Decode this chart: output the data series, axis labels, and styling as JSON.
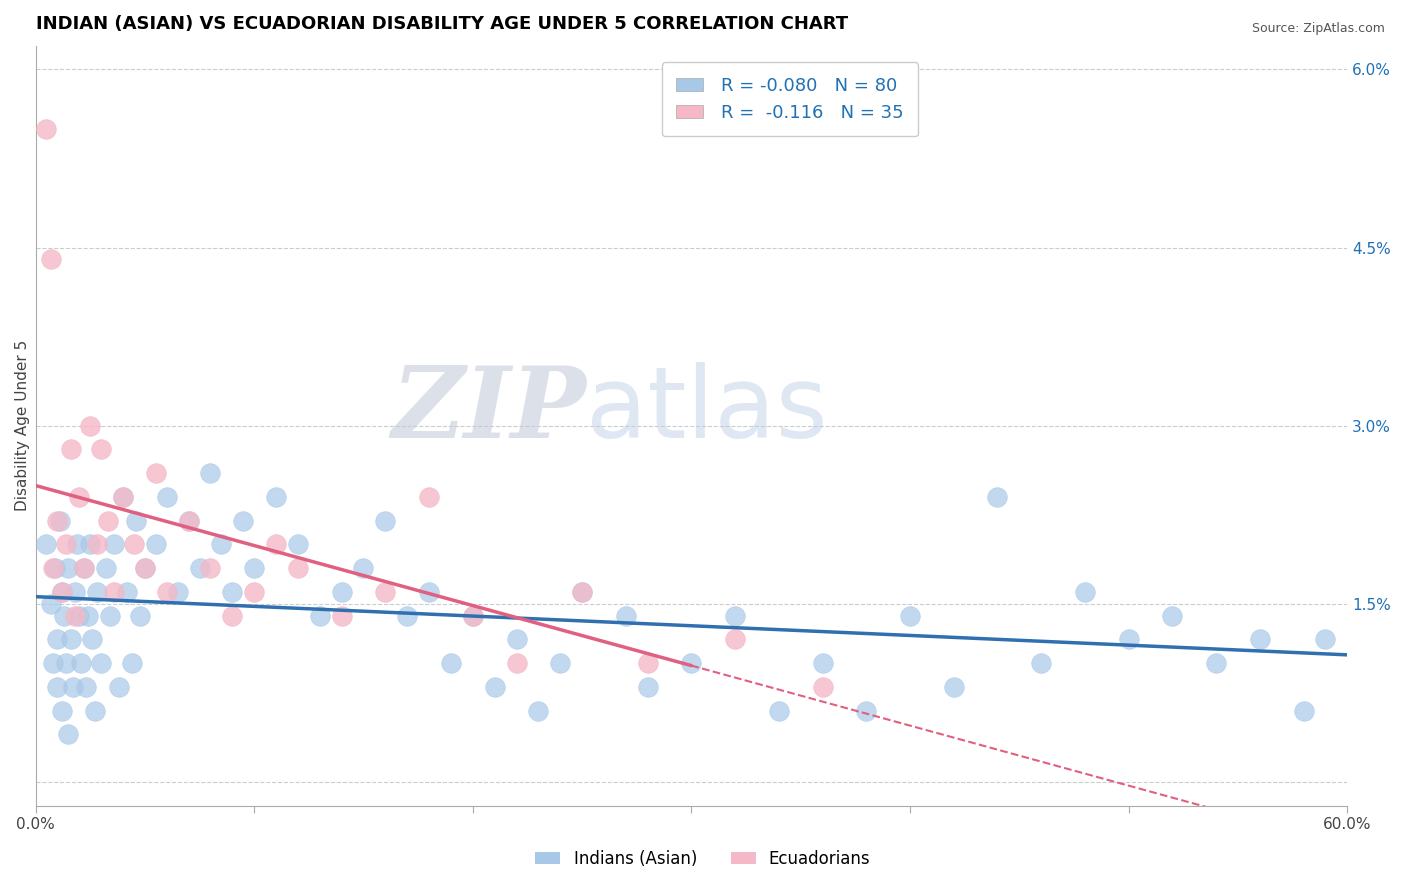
{
  "title": "INDIAN (ASIAN) VS ECUADORIAN DISABILITY AGE UNDER 5 CORRELATION CHART",
  "source": "Source: ZipAtlas.com",
  "ylabel": "Disability Age Under 5",
  "xlim": [
    0.0,
    0.6
  ],
  "ylim": [
    -0.002,
    0.062
  ],
  "xticks": [
    0.0,
    0.1,
    0.2,
    0.3,
    0.4,
    0.5,
    0.6
  ],
  "xticklabels": [
    "0.0%",
    "",
    "",
    "",
    "",
    "",
    "60.0%"
  ],
  "yticks_right": [
    0.0,
    0.015,
    0.03,
    0.045,
    0.06
  ],
  "yticklabels_right": [
    "",
    "1.5%",
    "3.0%",
    "4.5%",
    "6.0%"
  ],
  "blue_color": "#a8c8e8",
  "pink_color": "#f4b8c8",
  "blue_line_color": "#3070b0",
  "pink_line_color": "#e06080",
  "blue_scatter_x": [
    0.005,
    0.007,
    0.008,
    0.009,
    0.01,
    0.01,
    0.011,
    0.012,
    0.012,
    0.013,
    0.014,
    0.015,
    0.015,
    0.016,
    0.017,
    0.018,
    0.019,
    0.02,
    0.021,
    0.022,
    0.023,
    0.024,
    0.025,
    0.026,
    0.027,
    0.028,
    0.03,
    0.032,
    0.034,
    0.036,
    0.038,
    0.04,
    0.042,
    0.044,
    0.046,
    0.048,
    0.05,
    0.055,
    0.06,
    0.065,
    0.07,
    0.075,
    0.08,
    0.085,
    0.09,
    0.095,
    0.1,
    0.11,
    0.12,
    0.13,
    0.14,
    0.15,
    0.16,
    0.17,
    0.18,
    0.19,
    0.2,
    0.21,
    0.22,
    0.23,
    0.24,
    0.25,
    0.27,
    0.28,
    0.3,
    0.32,
    0.34,
    0.36,
    0.38,
    0.4,
    0.42,
    0.44,
    0.46,
    0.48,
    0.5,
    0.52,
    0.54,
    0.56,
    0.58,
    0.59
  ],
  "blue_scatter_y": [
    0.02,
    0.015,
    0.01,
    0.018,
    0.012,
    0.008,
    0.022,
    0.016,
    0.006,
    0.014,
    0.01,
    0.018,
    0.004,
    0.012,
    0.008,
    0.016,
    0.02,
    0.014,
    0.01,
    0.018,
    0.008,
    0.014,
    0.02,
    0.012,
    0.006,
    0.016,
    0.01,
    0.018,
    0.014,
    0.02,
    0.008,
    0.024,
    0.016,
    0.01,
    0.022,
    0.014,
    0.018,
    0.02,
    0.024,
    0.016,
    0.022,
    0.018,
    0.026,
    0.02,
    0.016,
    0.022,
    0.018,
    0.024,
    0.02,
    0.014,
    0.016,
    0.018,
    0.022,
    0.014,
    0.016,
    0.01,
    0.014,
    0.008,
    0.012,
    0.006,
    0.01,
    0.016,
    0.014,
    0.008,
    0.01,
    0.014,
    0.006,
    0.01,
    0.006,
    0.014,
    0.008,
    0.024,
    0.01,
    0.016,
    0.012,
    0.014,
    0.01,
    0.012,
    0.006,
    0.012
  ],
  "pink_scatter_x": [
    0.005,
    0.007,
    0.008,
    0.01,
    0.012,
    0.014,
    0.016,
    0.018,
    0.02,
    0.022,
    0.025,
    0.028,
    0.03,
    0.033,
    0.036,
    0.04,
    0.045,
    0.05,
    0.055,
    0.06,
    0.07,
    0.08,
    0.09,
    0.1,
    0.11,
    0.12,
    0.14,
    0.16,
    0.18,
    0.2,
    0.22,
    0.25,
    0.28,
    0.32,
    0.36
  ],
  "pink_scatter_y": [
    0.055,
    0.044,
    0.018,
    0.022,
    0.016,
    0.02,
    0.028,
    0.014,
    0.024,
    0.018,
    0.03,
    0.02,
    0.028,
    0.022,
    0.016,
    0.024,
    0.02,
    0.018,
    0.026,
    0.016,
    0.022,
    0.018,
    0.014,
    0.016,
    0.02,
    0.018,
    0.014,
    0.016,
    0.024,
    0.014,
    0.01,
    0.016,
    0.01,
    0.012,
    0.008
  ],
  "blue_R": -0.08,
  "blue_N": 80,
  "pink_R": -0.116,
  "pink_N": 35,
  "title_fontsize": 13,
  "tick_fontsize": 11,
  "axis_label_fontsize": 11
}
